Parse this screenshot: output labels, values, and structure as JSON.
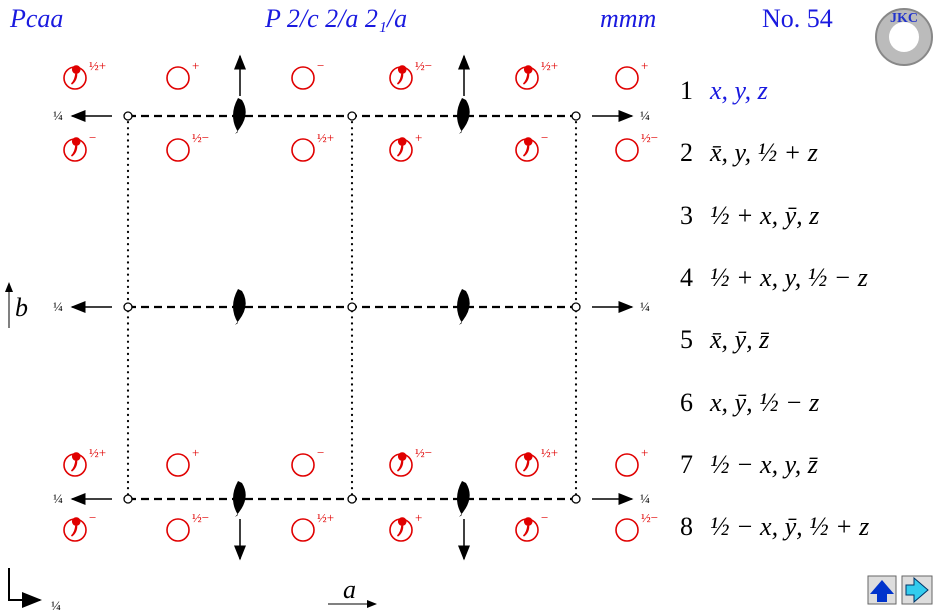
{
  "header": {
    "symbol": "Pcaa",
    "full_symbol": "P 2/c 2/a 2₁/a",
    "point_group": "mmm",
    "number": "No. 54",
    "logo": "JKC"
  },
  "diagram": {
    "markers": [
      "½+",
      "+",
      "−",
      "½−",
      "½+",
      "+",
      "−",
      "½−",
      "½+",
      "+",
      "−",
      "½−",
      "½+",
      "+",
      "−",
      "½−",
      "½+",
      "+",
      "−",
      "½−",
      "½+",
      "+",
      "−",
      "½−"
    ],
    "height_labels": [
      "¼",
      "¼",
      "¼",
      "¼",
      "¼",
      "¼",
      "¼"
    ],
    "axis_labels": {
      "a": "a",
      "b": "b"
    }
  },
  "positions": [
    {
      "number": "1",
      "coords": "x, y, z"
    },
    {
      "number": "2",
      "coords": "x̄, y, ½ + z"
    },
    {
      "number": "3",
      "coords": "½ + x, ȳ, z"
    },
    {
      "number": "4",
      "coords": "½ + x, y, ½ − z"
    },
    {
      "number": "5",
      "coords": "x̄, ȳ, z̄"
    },
    {
      "number": "6",
      "coords": "x, ȳ, ½ − z"
    },
    {
      "number": "7",
      "coords": "½ − x, y, z̄"
    },
    {
      "number": "8",
      "coords": "½ − x, ȳ, ½ + z"
    }
  ]
}
